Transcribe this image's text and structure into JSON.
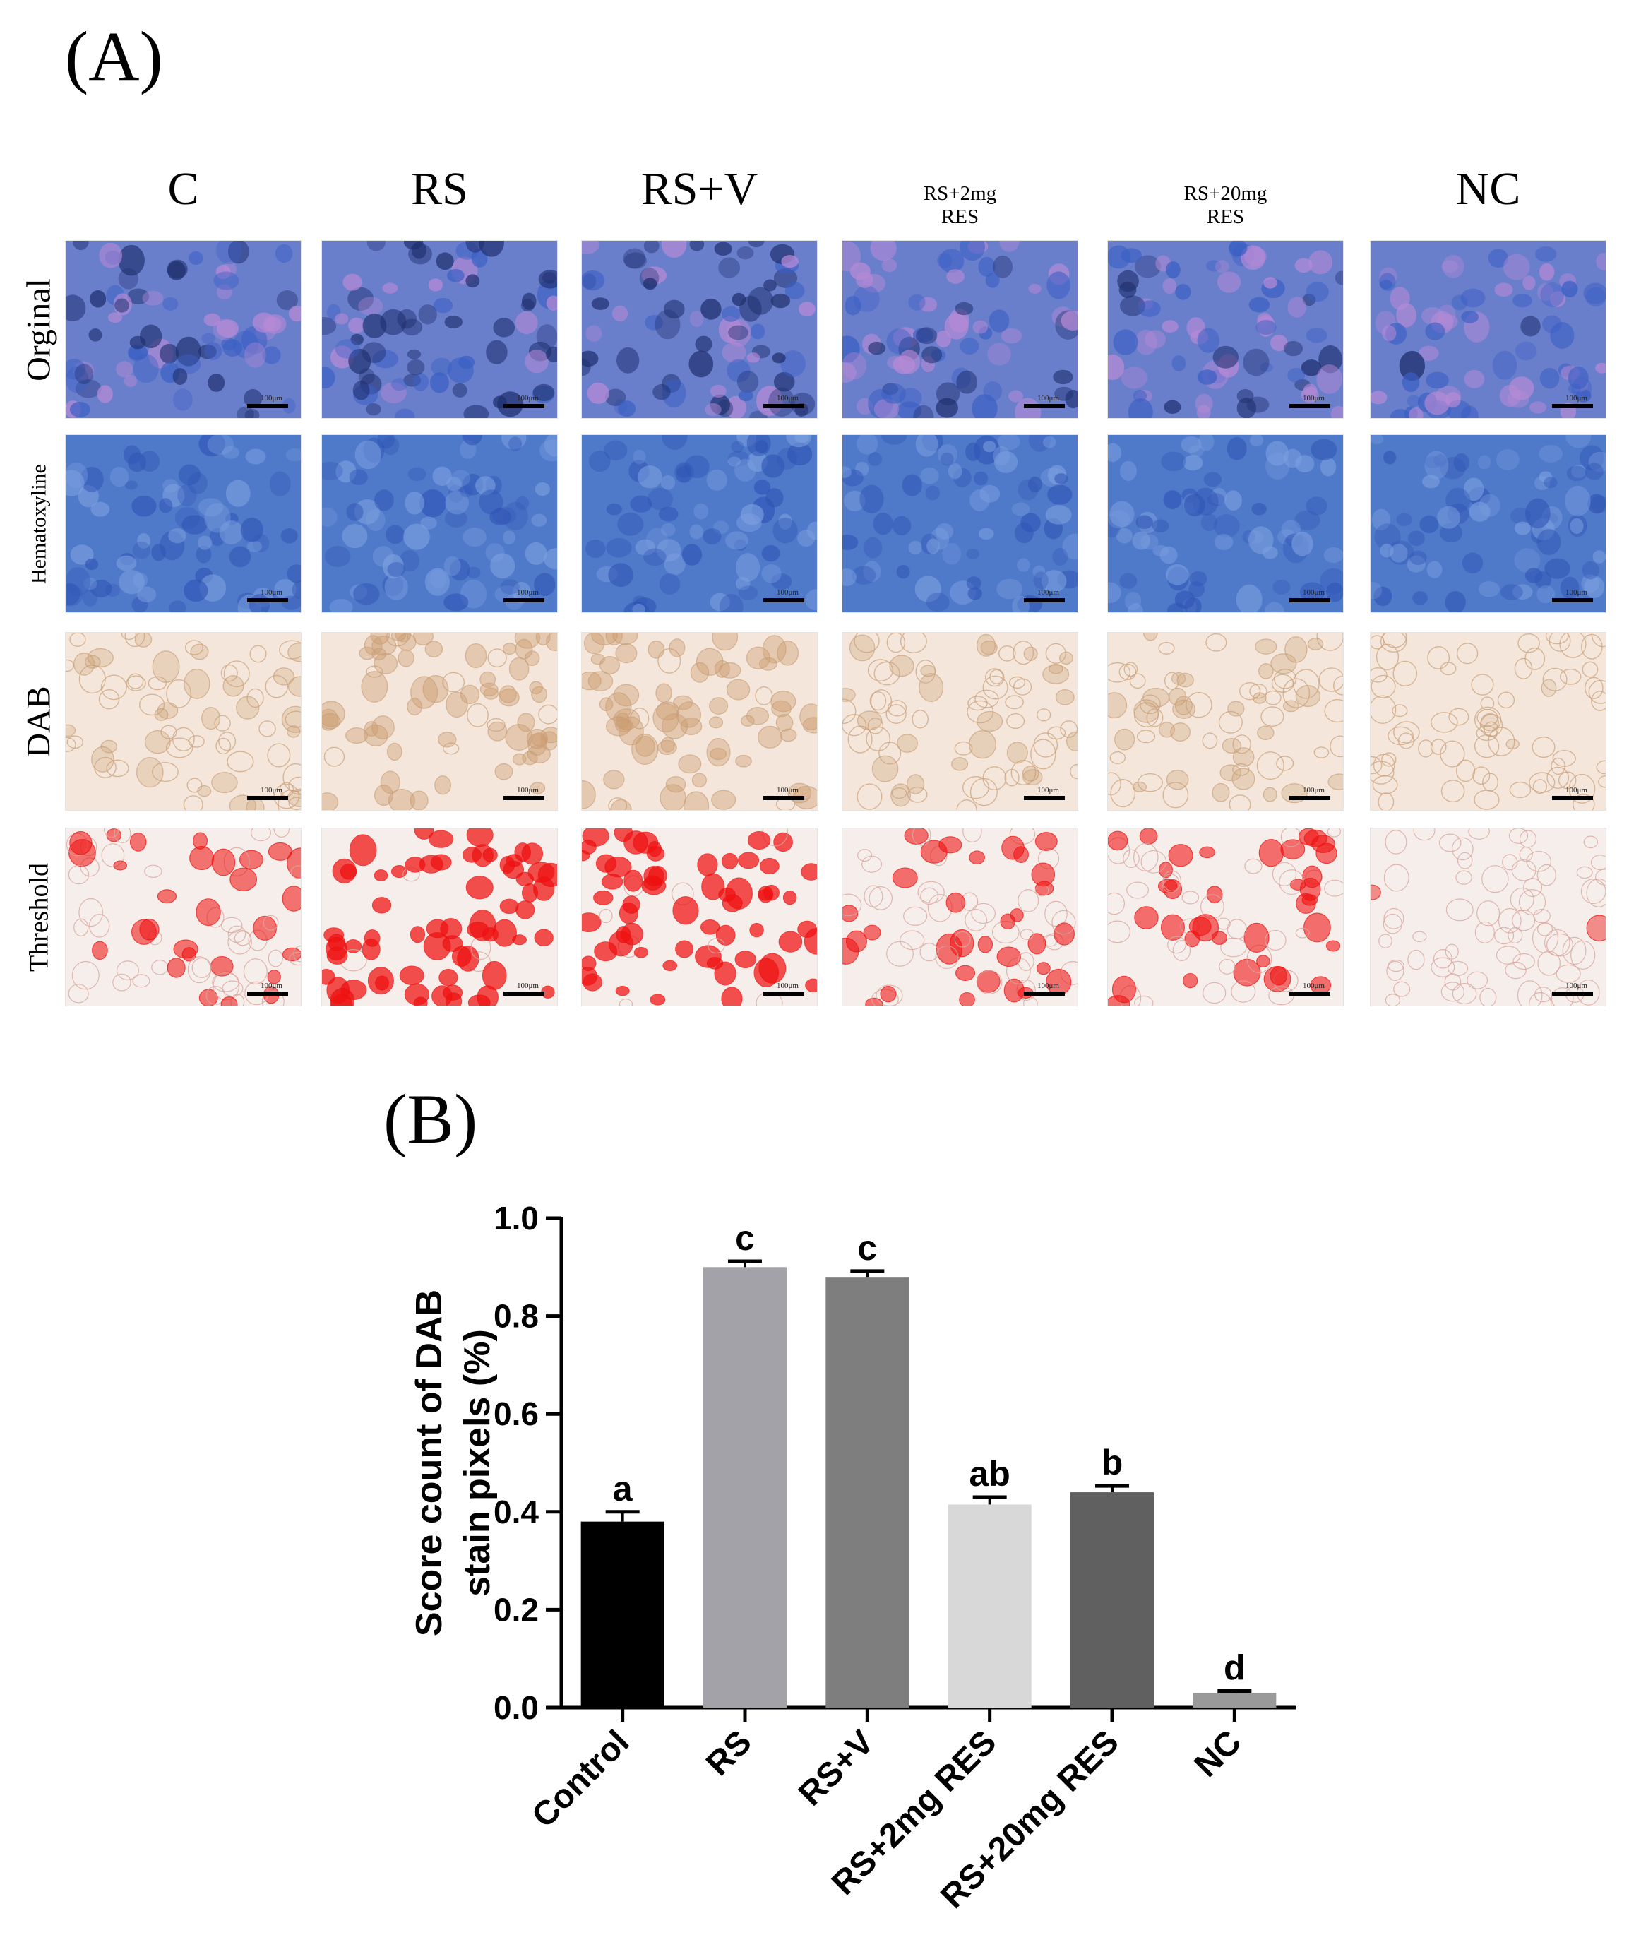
{
  "panel_a_label": "(A)",
  "panel_b_label": "(B)",
  "columns": [
    {
      "label_lines": [
        "C"
      ],
      "size": "big"
    },
    {
      "label_lines": [
        "RS"
      ],
      "size": "big"
    },
    {
      "label_lines": [
        "RS+V"
      ],
      "size": "big"
    },
    {
      "label_lines": [
        "RS+2mg",
        "RES"
      ],
      "size": "small"
    },
    {
      "label_lines": [
        "RS+20mg",
        "RES"
      ],
      "size": "small"
    },
    {
      "label_lines": [
        "NC"
      ],
      "size": "big"
    }
  ],
  "rows": [
    {
      "label": "Orginal",
      "style": "original"
    },
    {
      "label": "Hematoxyline",
      "style": "hematoxyline"
    },
    {
      "label": "DAB",
      "style": "dab"
    },
    {
      "label": "Threshold",
      "style": "threshold"
    }
  ],
  "scale_bar_text": "100μm",
  "colors": {
    "original": "#6a7fcc",
    "hematoxyline": "#4f79c9",
    "dab": "#f4e6da",
    "threshold": "#f6eeea",
    "threshold_red": "#ee1111"
  },
  "stain_intensity": [
    {
      "group": "C",
      "dab": 0.38
    },
    {
      "group": "RS",
      "dab": 0.9
    },
    {
      "group": "RS+V",
      "dab": 0.88
    },
    {
      "group": "RS+2mg RES",
      "dab": 0.42
    },
    {
      "group": "RS+20mg RES",
      "dab": 0.44
    },
    {
      "group": "NC",
      "dab": 0.03
    }
  ],
  "chart_data": {
    "type": "bar",
    "title": "",
    "xlabel": "",
    "ylabel_lines": [
      "Score count of DAB",
      "stain pixels  (%)"
    ],
    "ylim": [
      0,
      1.0
    ],
    "yticks": [
      "0.0",
      "0.2",
      "0.4",
      "0.6",
      "0.8",
      "1.0"
    ],
    "categories": [
      "Control",
      "RS",
      "RS+V",
      "RS+2mg RES",
      "RS+20mg RES",
      "NC"
    ],
    "values": [
      0.38,
      0.9,
      0.88,
      0.415,
      0.44,
      0.03
    ],
    "errors": [
      0.02,
      0.012,
      0.012,
      0.015,
      0.013,
      0.004
    ],
    "letters": [
      "a",
      "c",
      "c",
      "ab",
      "b",
      "d"
    ],
    "bar_colors": [
      "#000000",
      "#a2a2a8",
      "#7e7e7e",
      "#d8d8d8",
      "#606060",
      "#9a9a9a"
    ],
    "grid": false
  }
}
